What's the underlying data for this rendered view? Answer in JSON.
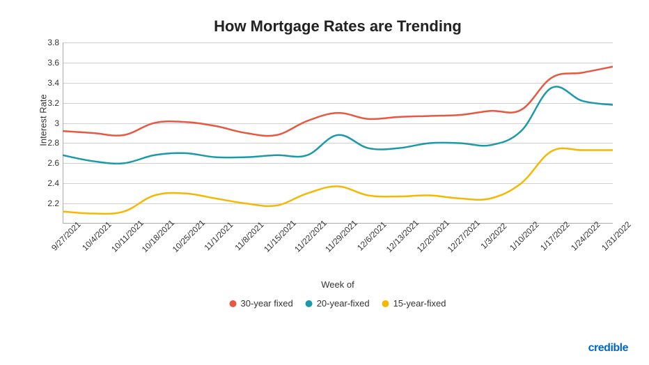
{
  "chart": {
    "type": "line",
    "title": "How Mortgage Rates are Trending",
    "title_fontsize": 22,
    "background_color": "#ffffff",
    "grid_color": "#d0d0d0",
    "ylabel": "Interest Rate",
    "xlabel": "Week of",
    "label_fontsize": 13,
    "ylim": [
      2.0,
      3.8
    ],
    "ytick_step": 0.2,
    "yticks": [
      "2.2",
      "2.4",
      "2.6",
      "2.8",
      "3",
      "3.2",
      "3.4",
      "3.6",
      "3.8"
    ],
    "categories": [
      "9/27/2021",
      "10/4/2021",
      "10/11/2021",
      "10/18/2021",
      "10/25/2021",
      "11/1/2021",
      "11/8/2021",
      "11/15/2021",
      "11/22/2021",
      "11/29/2021",
      "12/6/2021",
      "12/13/2021",
      "12/20/2021",
      "12/27/2021",
      "1/3/2022",
      "1/10/2022",
      "1/17/2022",
      "1/24/2022",
      "1/31/2022"
    ],
    "series": [
      {
        "name": "30-year fixed",
        "color": "#e8573f",
        "line_width": 2.5,
        "values": [
          2.92,
          2.9,
          2.88,
          3.0,
          3.01,
          2.97,
          2.9,
          2.88,
          3.02,
          3.1,
          3.04,
          3.06,
          3.07,
          3.08,
          3.12,
          3.13,
          3.45,
          3.5,
          3.56
        ]
      },
      {
        "name": "20-year-fixed",
        "color": "#1a9aa8",
        "line_width": 2.5,
        "values": [
          2.68,
          2.62,
          2.6,
          2.68,
          2.7,
          2.66,
          2.66,
          2.68,
          2.68,
          2.88,
          2.75,
          2.75,
          2.8,
          2.8,
          2.78,
          2.92,
          3.35,
          3.22,
          3.18
        ]
      },
      {
        "name": "15-year-fixed",
        "color": "#f5b800",
        "line_width": 2.5,
        "values": [
          2.12,
          2.1,
          2.12,
          2.28,
          2.3,
          2.25,
          2.2,
          2.18,
          2.3,
          2.37,
          2.28,
          2.27,
          2.28,
          2.25,
          2.25,
          2.4,
          2.72,
          2.73,
          2.73
        ]
      }
    ]
  },
  "brand": "credible"
}
